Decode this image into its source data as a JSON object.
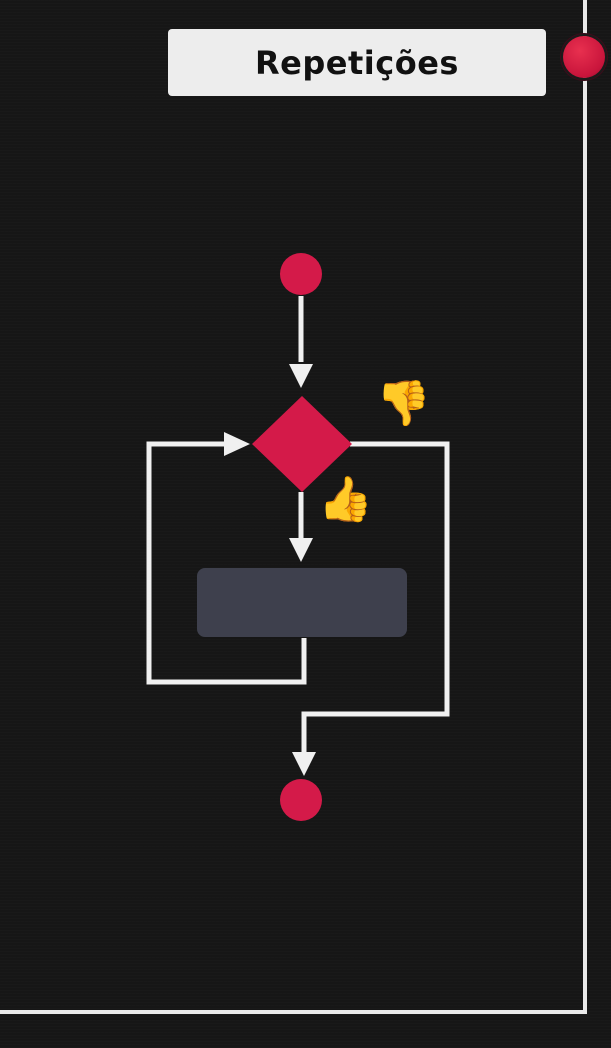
{
  "title": "Repetições",
  "icons": {
    "thumbs_down": "👎",
    "thumbs_up": "👍",
    "corner_dot": "red-circle-icon"
  },
  "colors": {
    "accent": "#d41a49",
    "process_box": "#3e404d",
    "line": "#f0f0f0",
    "background": "#161616",
    "card": "#ededed"
  },
  "diagram": {
    "nodes": [
      "start",
      "condition",
      "process",
      "end"
    ],
    "branches": {
      "true": "process",
      "false": "end"
    }
  }
}
